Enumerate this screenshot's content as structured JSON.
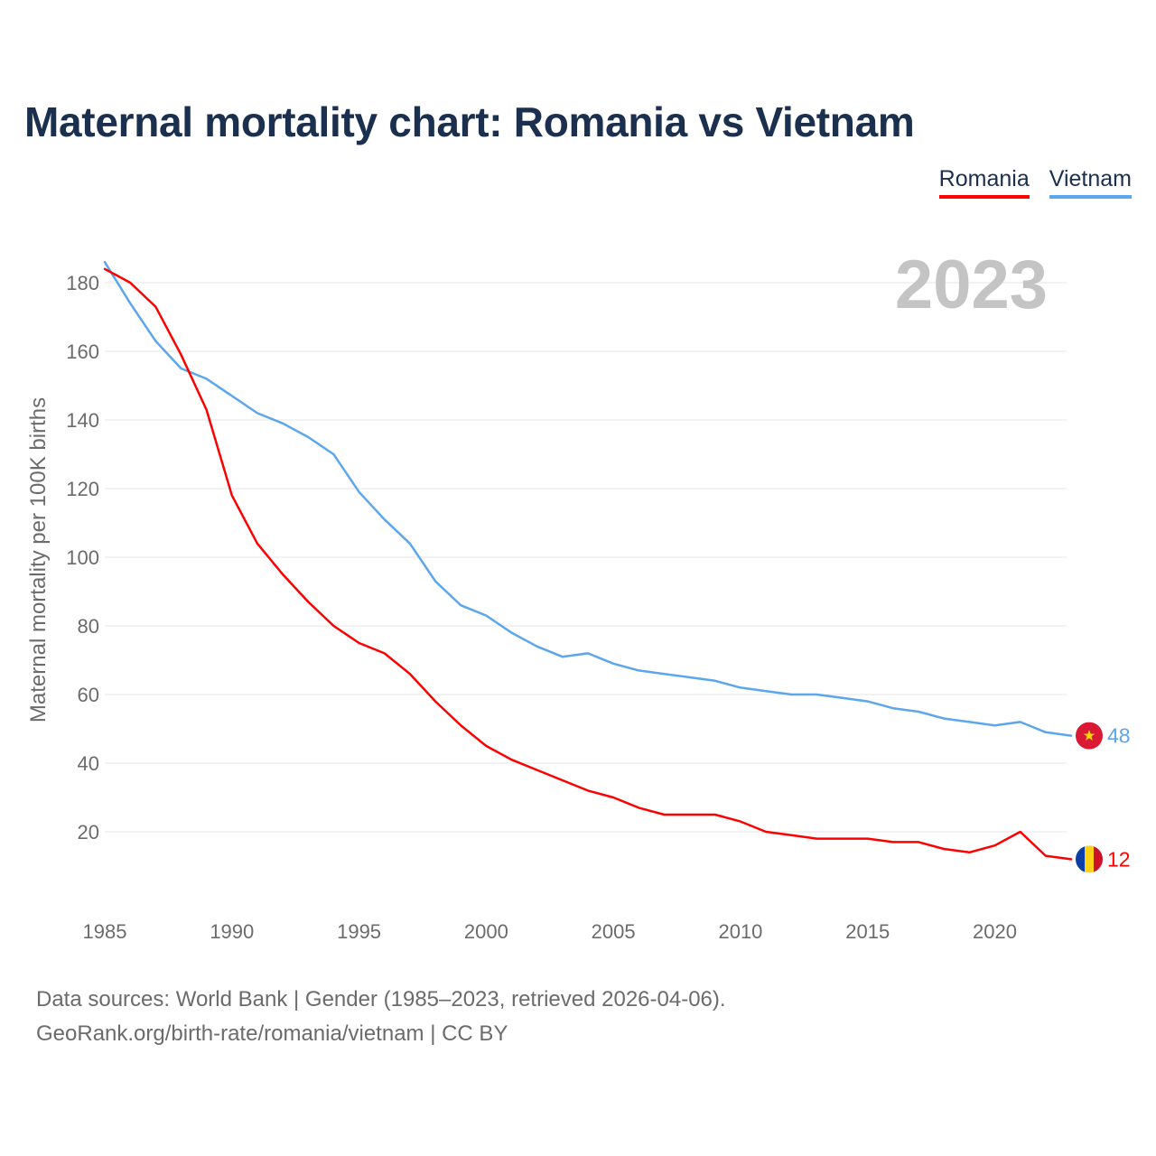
{
  "title": "Maternal mortality chart: Romania vs Vietnam",
  "year_label": "2023",
  "footer": {
    "sources": "Data sources: World Bank | Gender (1985–2023, retrieved 2026-04-06).",
    "link_text": "GeoRank.org/birth-rate/romania/vietnam",
    "license": " | CC BY"
  },
  "chart_data": {
    "type": "line",
    "title": "Maternal mortality chart: Romania vs Vietnam",
    "ylabel": "Maternal mortality per 100K births",
    "xlabel": "",
    "xlim": [
      1985,
      2023
    ],
    "ylim": [
      0,
      190
    ],
    "x_ticks": [
      "1985",
      "1990",
      "1995",
      "2000",
      "2005",
      "2010",
      "2015",
      "2020"
    ],
    "y_ticks": [
      "20",
      "40",
      "60",
      "80",
      "100",
      "120",
      "140",
      "160",
      "180"
    ],
    "x": [
      1985,
      1986,
      1987,
      1988,
      1989,
      1990,
      1991,
      1992,
      1993,
      1994,
      1995,
      1996,
      1997,
      1998,
      1999,
      2000,
      2001,
      2002,
      2003,
      2004,
      2005,
      2006,
      2007,
      2008,
      2009,
      2010,
      2011,
      2012,
      2013,
      2014,
      2015,
      2016,
      2017,
      2018,
      2019,
      2020,
      2021,
      2022,
      2023
    ],
    "series": [
      {
        "name": "Romania",
        "color": "#ff0000",
        "end_label": "12",
        "flag": "romania-flag",
        "values": [
          184,
          180,
          173,
          159,
          143,
          118,
          104,
          95,
          87,
          80,
          75,
          72,
          66,
          58,
          51,
          45,
          41,
          38,
          35,
          32,
          30,
          27,
          25,
          25,
          25,
          23,
          20,
          19,
          18,
          18,
          18,
          17,
          17,
          15,
          14,
          16,
          20,
          13,
          12
        ]
      },
      {
        "name": "Vietnam",
        "color": "#5ba6ec",
        "end_label": "48",
        "flag": "vietnam-flag",
        "values": [
          186,
          174,
          163,
          155,
          152,
          147,
          142,
          139,
          135,
          130,
          119,
          111,
          104,
          93,
          86,
          83,
          78,
          74,
          71,
          72,
          69,
          67,
          66,
          65,
          64,
          62,
          61,
          60,
          60,
          59,
          58,
          56,
          55,
          53,
          52,
          51,
          52,
          49,
          48
        ]
      }
    ]
  }
}
